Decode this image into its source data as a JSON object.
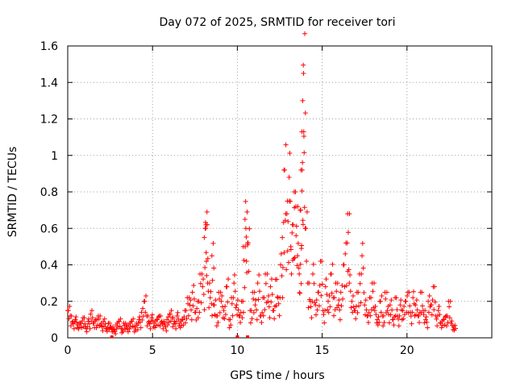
{
  "chart_data": {
    "type": "scatter",
    "title": "Day 072 of 2025, SRMTID for receiver tori",
    "xlabel": "GPS time / hours",
    "ylabel": "SRMTID / TECUs",
    "xlim": [
      0,
      25
    ],
    "ylim": [
      0,
      1.6
    ],
    "x_ticks": [
      "0",
      "5",
      "10",
      "15",
      "20"
    ],
    "y_ticks": [
      "0",
      "0.2",
      "0.4",
      "0.6",
      "0.8",
      "1",
      "1.2",
      "1.4",
      "1.6"
    ],
    "grid": true,
    "marker": "plus",
    "color": "#ff0000",
    "series": [
      {
        "name": "SRMTID",
        "x": [
          0.0,
          0.15,
          0.3,
          0.45,
          0.6,
          0.75,
          0.9,
          1.05,
          1.2,
          1.35,
          1.5,
          1.65,
          1.8,
          1.95,
          2.1,
          2.25,
          2.4,
          2.55,
          2.7,
          2.85,
          3.0,
          3.15,
          3.3,
          3.45,
          3.6,
          3.75,
          3.9,
          4.05,
          4.2,
          4.35,
          4.5,
          4.65,
          4.8,
          4.95,
          5.1,
          5.25,
          5.4,
          5.55,
          5.7,
          5.85,
          6.0,
          6.15,
          6.3,
          6.45,
          6.6,
          6.75,
          6.9,
          7.05,
          7.2,
          7.35,
          7.5,
          7.65,
          7.8,
          7.95,
          8.05,
          8.1,
          8.15,
          8.25,
          8.4,
          8.5,
          8.6,
          8.75,
          8.9,
          9.05,
          9.2,
          9.35,
          9.5,
          9.65,
          9.8,
          9.95,
          10.1,
          10.25,
          10.35,
          10.45,
          10.5,
          10.6,
          10.75,
          10.9,
          11.05,
          11.2,
          11.35,
          11.5,
          11.65,
          11.8,
          11.95,
          12.1,
          12.25,
          12.4,
          12.55,
          12.65,
          12.75,
          12.85,
          12.95,
          13.05,
          13.15,
          13.25,
          13.35,
          13.45,
          13.55,
          13.65,
          13.7,
          13.75,
          13.8,
          13.85,
          13.9,
          14.0,
          14.15,
          14.3,
          14.45,
          14.6,
          14.75,
          14.9,
          15.05,
          15.2,
          15.35,
          15.5,
          15.65,
          15.8,
          15.95,
          16.1,
          16.25,
          16.4,
          16.5,
          16.6,
          16.75,
          16.9,
          17.05,
          17.2,
          17.35,
          17.5,
          17.65,
          17.8,
          17.95,
          18.1,
          18.25,
          18.4,
          18.55,
          18.7,
          18.85,
          19.0,
          19.15,
          19.3,
          19.45,
          19.6,
          19.75,
          19.9,
          20.05,
          20.2,
          20.35,
          20.5,
          20.65,
          20.8,
          20.95,
          21.1,
          21.25,
          21.4,
          21.55,
          21.7,
          21.85,
          22.0,
          22.15,
          22.3,
          22.45,
          22.6,
          22.75
        ],
        "y": [
          0.15,
          0.12,
          0.09,
          0.1,
          0.07,
          0.08,
          0.11,
          0.06,
          0.09,
          0.13,
          0.08,
          0.1,
          0.12,
          0.07,
          0.09,
          0.05,
          0.08,
          0.06,
          0.04,
          0.07,
          0.09,
          0.05,
          0.08,
          0.06,
          0.07,
          0.09,
          0.06,
          0.08,
          0.1,
          0.14,
          0.2,
          0.12,
          0.09,
          0.11,
          0.08,
          0.1,
          0.12,
          0.09,
          0.07,
          0.1,
          0.13,
          0.11,
          0.09,
          0.12,
          0.08,
          0.1,
          0.15,
          0.22,
          0.18,
          0.25,
          0.14,
          0.2,
          0.35,
          0.28,
          0.55,
          0.6,
          0.62,
          0.3,
          0.22,
          0.45,
          0.18,
          0.12,
          0.25,
          0.2,
          0.15,
          0.28,
          0.1,
          0.22,
          0.3,
          0.18,
          0.12,
          0.2,
          0.5,
          0.65,
          0.6,
          0.52,
          0.15,
          0.25,
          0.18,
          0.3,
          0.12,
          0.22,
          0.35,
          0.2,
          0.28,
          0.15,
          0.32,
          0.22,
          0.4,
          0.55,
          0.92,
          0.68,
          0.75,
          0.88,
          0.5,
          0.62,
          0.8,
          0.72,
          0.45,
          0.35,
          0.7,
          0.92,
          1.13,
          1.3,
          1.45,
          0.6,
          0.3,
          0.2,
          0.35,
          0.18,
          0.25,
          0.42,
          0.15,
          0.28,
          0.2,
          0.35,
          0.22,
          0.3,
          0.18,
          0.25,
          0.4,
          0.52,
          0.68,
          0.3,
          0.2,
          0.15,
          0.25,
          0.35,
          0.45,
          0.18,
          0.12,
          0.22,
          0.3,
          0.15,
          0.1,
          0.2,
          0.12,
          0.25,
          0.15,
          0.18,
          0.1,
          0.22,
          0.12,
          0.18,
          0.15,
          0.2,
          0.25,
          0.14,
          0.22,
          0.18,
          0.12,
          0.25,
          0.15,
          0.1,
          0.2,
          0.18,
          0.28,
          0.12,
          0.15,
          0.08,
          0.1,
          0.12,
          0.2,
          0.08,
          0.06
        ]
      }
    ],
    "outliers_at_zero_x": [
      2.6,
      10.0,
      10.6
    ]
  }
}
